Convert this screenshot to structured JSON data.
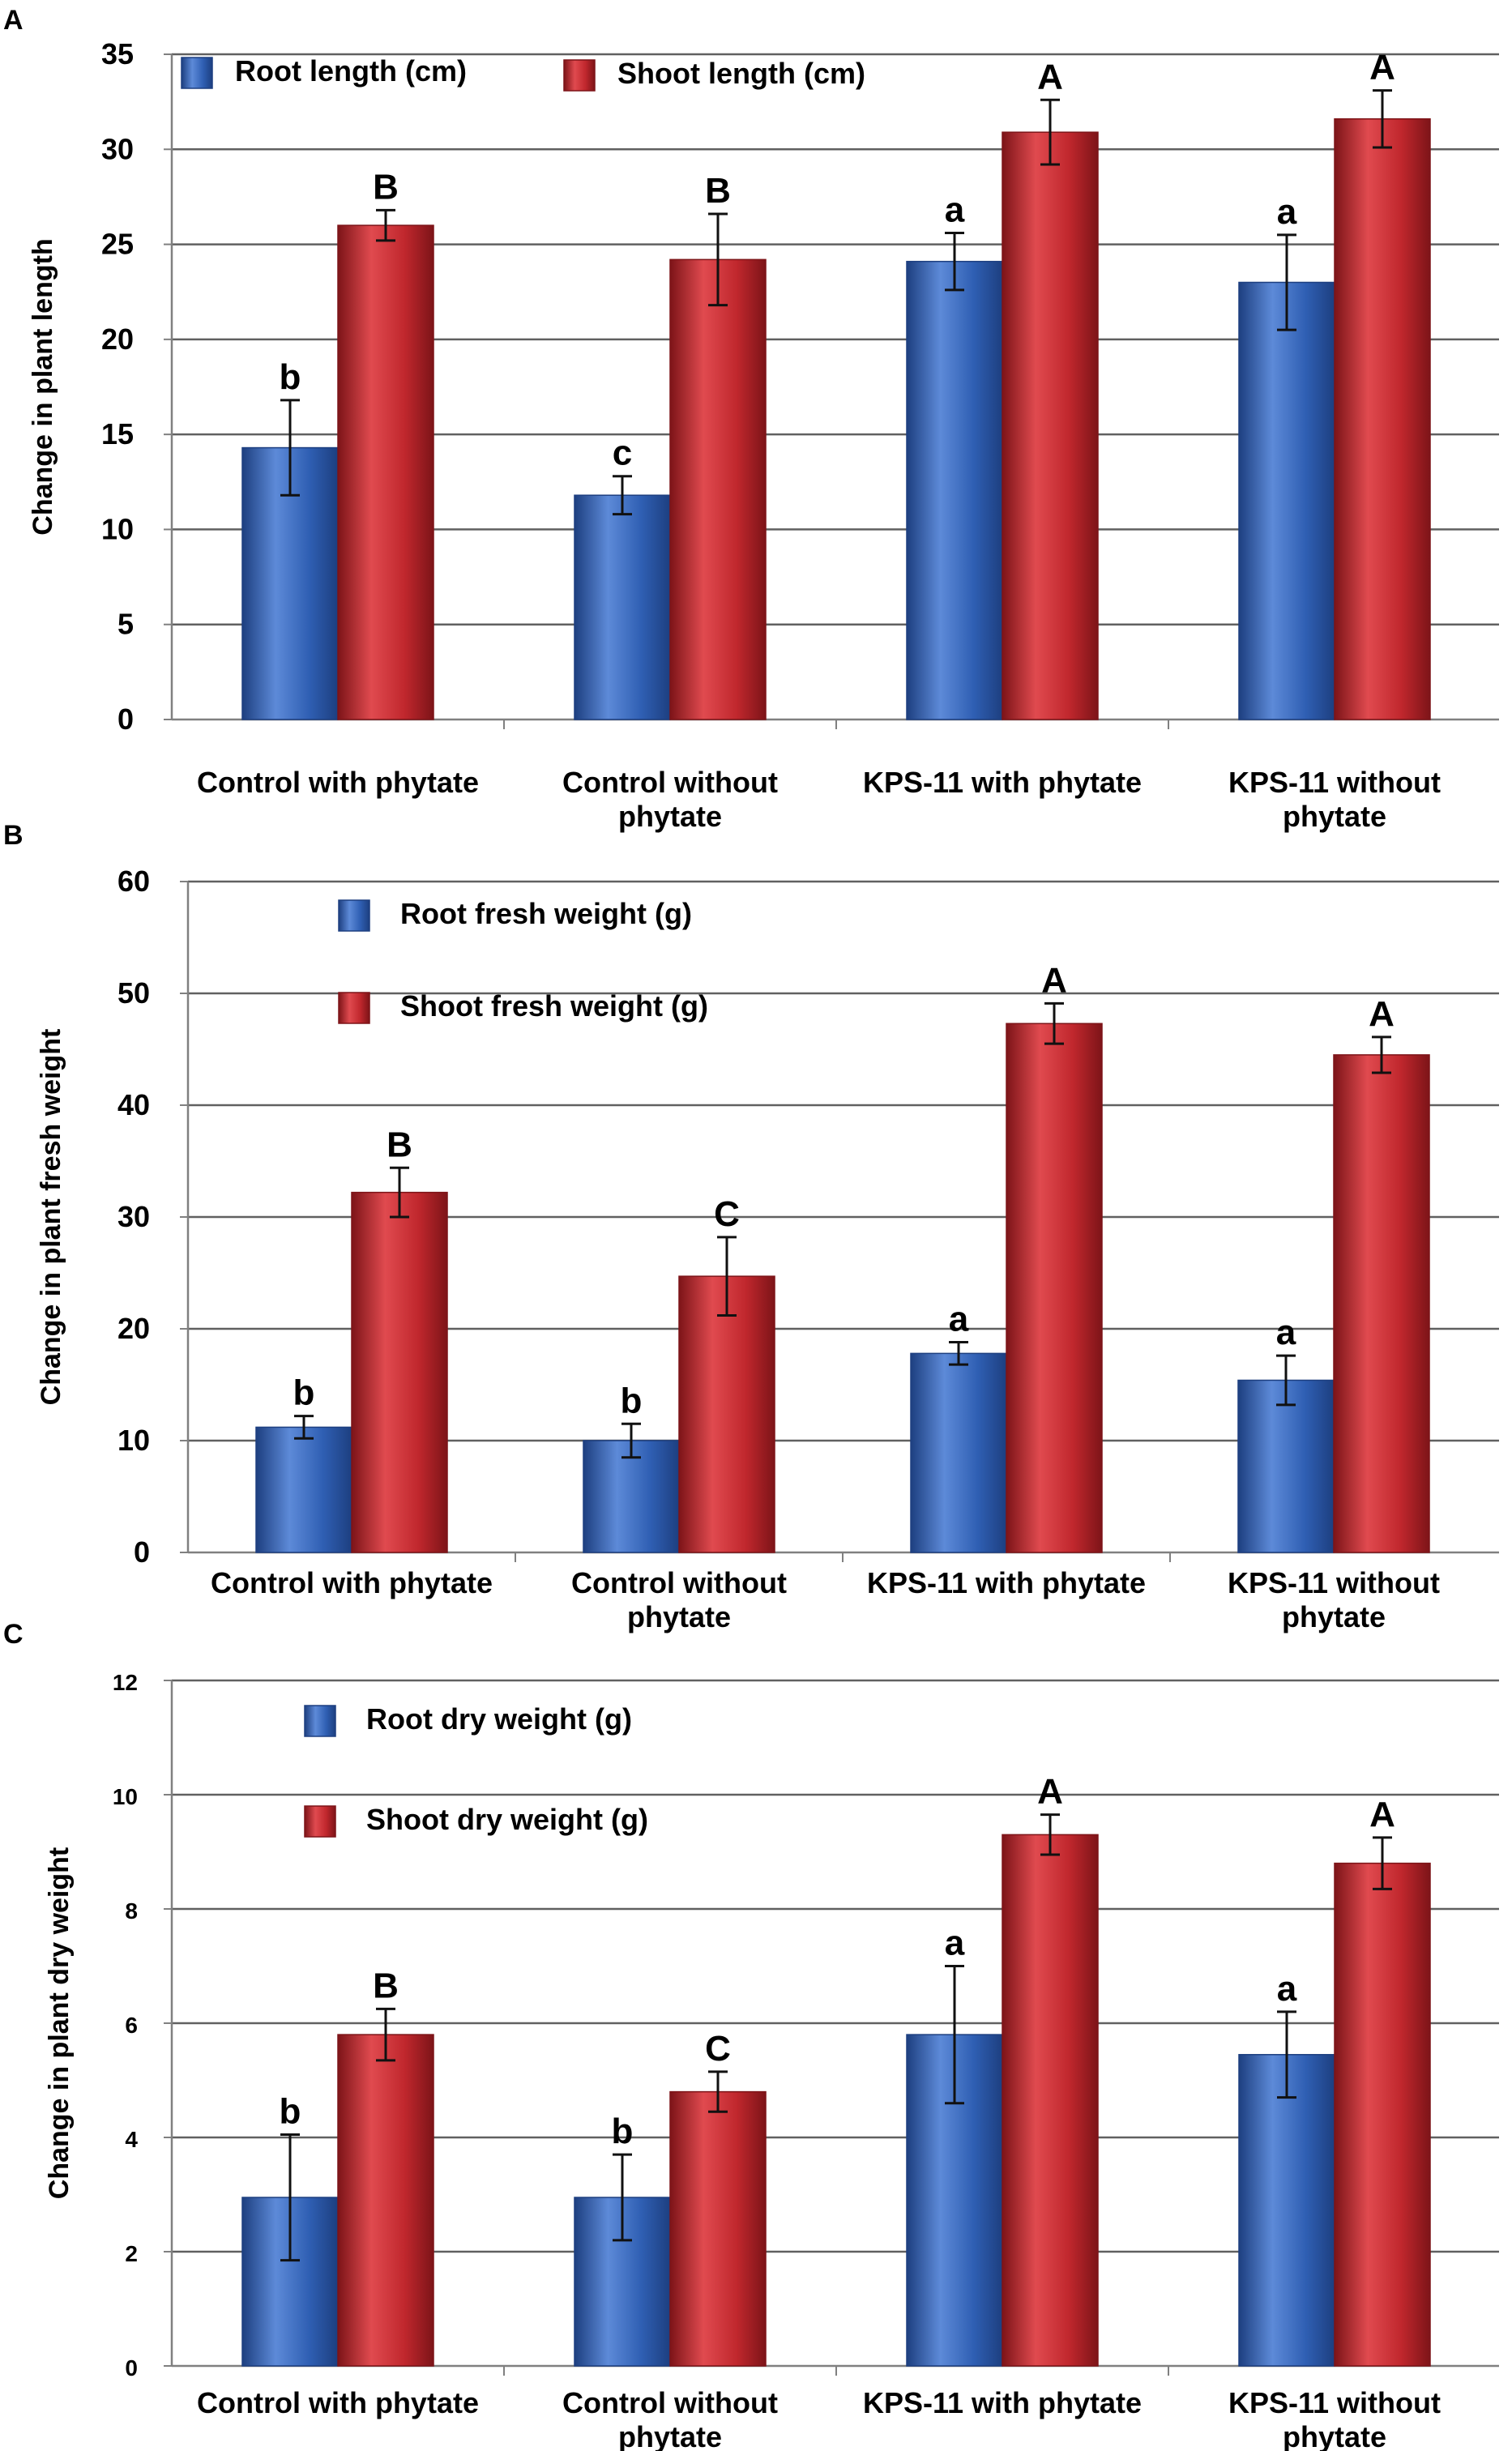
{
  "colors": {
    "root": "#2f5fb3",
    "root_light": "#5d8ad8",
    "root_dark": "#1d3f80",
    "shoot": "#c0272d",
    "shoot_light": "#e04a4f",
    "shoot_dark": "#7d1418",
    "grid": "#606060",
    "axis": "#808080"
  },
  "chart_data": [
    {
      "panel": "A",
      "type": "bar",
      "ylabel": "Change in plant length",
      "ylim": [
        0,
        35
      ],
      "yticks": [
        "0",
        "5",
        "10",
        "15",
        "20",
        "25",
        "30",
        "35"
      ],
      "ytick_values": [
        0,
        5,
        10,
        15,
        20,
        25,
        30,
        35
      ],
      "legend_placement": "top-left, single row",
      "categories": [
        [
          "Control with phytate"
        ],
        [
          "Control without",
          "phytate"
        ],
        [
          "KPS-11 with phytate"
        ],
        [
          "KPS-11 without",
          "phytate"
        ]
      ],
      "series": [
        {
          "name": "Root length (cm)",
          "values": [
            14.3,
            11.8,
            24.1,
            23.0
          ],
          "errors": [
            2.5,
            1.0,
            1.5,
            2.5
          ],
          "letters": [
            "b",
            "c",
            "a",
            "a"
          ]
        },
        {
          "name": "Shoot length (cm)",
          "values": [
            26.0,
            24.2,
            30.9,
            31.6
          ],
          "errors": [
            0.8,
            2.4,
            1.7,
            1.5
          ],
          "letters": [
            "B",
            "B",
            "A",
            "A"
          ]
        }
      ]
    },
    {
      "panel": "B",
      "type": "bar",
      "ylabel": "Change in plant fresh weight",
      "ylim": [
        0,
        60
      ],
      "yticks": [
        "0",
        "10",
        "20",
        "30",
        "40",
        "50",
        "60"
      ],
      "ytick_values": [
        0,
        10,
        20,
        30,
        40,
        50,
        60
      ],
      "legend_placement": "top-left, stacked",
      "categories": [
        [
          "Control with phytate"
        ],
        [
          "Control without",
          "phytate"
        ],
        [
          "KPS-11 with phytate"
        ],
        [
          "KPS-11 without",
          "phytate"
        ]
      ],
      "series": [
        {
          "name": "Root fresh weight (g)",
          "values": [
            11.2,
            10.0,
            17.8,
            15.4
          ],
          "errors": [
            1.0,
            1.5,
            1.0,
            2.2
          ],
          "letters": [
            "b",
            "b",
            "a",
            "a"
          ]
        },
        {
          "name": "Shoot fresh weight (g)",
          "values": [
            32.2,
            24.7,
            47.3,
            44.5
          ],
          "errors": [
            2.2,
            3.5,
            1.8,
            1.6
          ],
          "letters": [
            "B",
            "C",
            "A",
            "A"
          ]
        }
      ]
    },
    {
      "panel": "C",
      "type": "bar",
      "ylabel": "Change in plant dry weight",
      "ylim": [
        0,
        12
      ],
      "yticks": [
        "0",
        "2",
        "4",
        "6",
        "8",
        "10",
        "12"
      ],
      "ytick_values": [
        0,
        2,
        4,
        6,
        8,
        10,
        12
      ],
      "legend_placement": "top-left, stacked",
      "categories": [
        [
          "Control with phytate"
        ],
        [
          "Control without",
          "phytate"
        ],
        [
          "KPS-11 with phytate"
        ],
        [
          "KPS-11 without",
          "phytate"
        ]
      ],
      "series": [
        {
          "name": "Root dry weight (g)",
          "values": [
            2.95,
            2.95,
            5.8,
            5.45
          ],
          "errors": [
            1.1,
            0.75,
            1.2,
            0.75
          ],
          "letters": [
            "b",
            "b",
            "a",
            "a"
          ]
        },
        {
          "name": "Shoot dry weight (g)",
          "values": [
            5.8,
            4.8,
            9.3,
            8.8
          ],
          "errors": [
            0.45,
            0.35,
            0.35,
            0.45
          ],
          "letters": [
            "B",
            "C",
            "A",
            "A"
          ]
        }
      ]
    }
  ]
}
